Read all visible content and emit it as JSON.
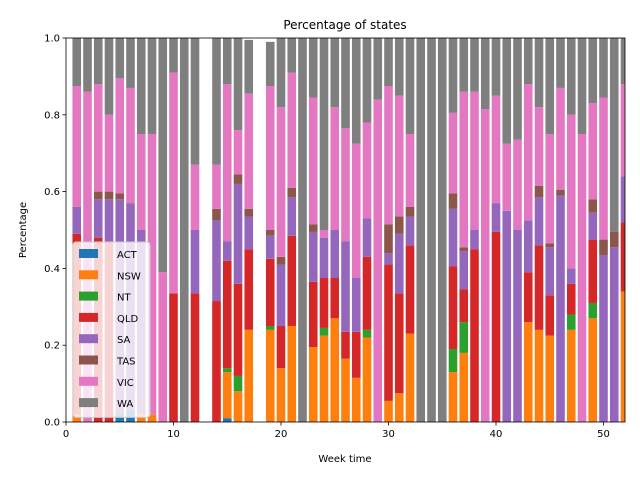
{
  "chart_data": {
    "type": "bar",
    "stacked": true,
    "title": "Percentage of states",
    "xlabel": "Week time",
    "ylabel": "Percentage",
    "xlim": [
      0,
      52
    ],
    "ylim": [
      0,
      1
    ],
    "xticks": [
      "0",
      "10",
      "20",
      "30",
      "40",
      "50"
    ],
    "yticks": [
      "0.0",
      "0.2",
      "0.4",
      "0.6",
      "0.8",
      "1.0"
    ],
    "legend_position": "lower-left",
    "grid": false,
    "x": [
      1,
      2,
      3,
      4,
      5,
      6,
      7,
      8,
      9,
      10,
      11,
      12,
      13,
      14,
      15,
      16,
      17,
      18,
      19,
      20,
      21,
      22,
      23,
      24,
      25,
      26,
      27,
      28,
      29,
      30,
      31,
      32,
      33,
      34,
      35,
      36,
      37,
      38,
      39,
      40,
      41,
      42,
      43,
      44,
      45,
      46,
      47,
      48,
      49,
      50,
      51,
      52
    ],
    "series": [
      {
        "name": "ACT",
        "color": "#1f77b4",
        "values": [
          0,
          0,
          0,
          0,
          0.02,
          0.03,
          0,
          0,
          0,
          0,
          0,
          0,
          0,
          0,
          0.01,
          0,
          0,
          0,
          0,
          0,
          0,
          0,
          0,
          0,
          0,
          0,
          0,
          0,
          0,
          0,
          0,
          0,
          0,
          0,
          0,
          0,
          0,
          0,
          0,
          0,
          0,
          0,
          0,
          0,
          0,
          0,
          0,
          0,
          0,
          0,
          0,
          0
        ]
      },
      {
        "name": "NSW",
        "color": "#ff7f0e",
        "values": [
          0.02,
          0,
          0,
          0,
          0,
          0,
          0.02,
          0.02,
          0,
          0,
          0,
          0,
          0,
          0,
          0.12,
          0.08,
          0.24,
          0,
          0.24,
          0.14,
          0.25,
          0,
          0.195,
          0.225,
          0.27,
          0.165,
          0.115,
          0.22,
          0,
          0.055,
          0.075,
          0.23,
          0,
          0,
          0,
          0.13,
          0.18,
          0,
          0,
          0,
          0,
          0,
          0.26,
          0.24,
          0.225,
          0,
          0.24,
          0,
          0.27,
          0,
          0,
          0.34
        ]
      },
      {
        "name": "NT",
        "color": "#2ca02c",
        "values": [
          0,
          0,
          0,
          0,
          0,
          0,
          0,
          0,
          0,
          0,
          0,
          0,
          0,
          0,
          0.01,
          0.04,
          0,
          0,
          0.01,
          0,
          0,
          0,
          0,
          0.02,
          0,
          0,
          0,
          0.02,
          0,
          0,
          0,
          0,
          0,
          0,
          0,
          0.06,
          0.08,
          0,
          0,
          0,
          0,
          0,
          0,
          0,
          0,
          0,
          0.04,
          0,
          0.04,
          0,
          0,
          0
        ]
      },
      {
        "name": "QLD",
        "color": "#d62728",
        "values": [
          0.47,
          0,
          0.48,
          0.47,
          0,
          0,
          0,
          0,
          0,
          0.335,
          0,
          0.335,
          0,
          0.315,
          0.28,
          0.24,
          0.21,
          0,
          0.175,
          0.11,
          0.235,
          0,
          0.17,
          0.13,
          0.105,
          0.07,
          0.12,
          0.19,
          0,
          0.355,
          0.26,
          0.23,
          0,
          0,
          0,
          0.215,
          0.085,
          0.45,
          0,
          0.495,
          0,
          0,
          0.13,
          0.22,
          0.105,
          0,
          0.08,
          0,
          0.165,
          0,
          0,
          0.18
        ]
      },
      {
        "name": "SA",
        "color": "#9467bd",
        "values": [
          0.07,
          0,
          0.1,
          0.11,
          0.56,
          0.54,
          0.48,
          0,
          0,
          0,
          0,
          0.165,
          0,
          0.21,
          0.05,
          0.26,
          0.085,
          0,
          0.06,
          0.16,
          0.1,
          0,
          0.13,
          0.105,
          0.125,
          0.235,
          0.14,
          0.1,
          0,
          0.03,
          0.155,
          0.075,
          0,
          0,
          0,
          0.15,
          0.1,
          0.05,
          0,
          0.075,
          0.55,
          0.5,
          0.135,
          0.125,
          0.125,
          0.59,
          0.04,
          0,
          0.07,
          0.435,
          0.455,
          0.12
        ]
      },
      {
        "name": "TAS",
        "color": "#8c564b",
        "values": [
          0,
          0,
          0.02,
          0.02,
          0.015,
          0,
          0,
          0,
          0,
          0,
          0,
          0,
          0,
          0.03,
          0,
          0.025,
          0.02,
          0,
          0.015,
          0.02,
          0.025,
          0,
          0.02,
          0,
          0,
          0,
          0,
          0,
          0,
          0.075,
          0.045,
          0.025,
          0,
          0,
          0,
          0.04,
          0.01,
          0,
          0,
          0,
          0,
          0,
          0,
          0.03,
          0.01,
          0.015,
          0,
          0,
          0.035,
          0.04,
          0.04,
          0
        ]
      },
      {
        "name": "VIC",
        "color": "#e377c2",
        "values": [
          0.315,
          0.86,
          0.28,
          0.2,
          0.3,
          0.3,
          0.25,
          0.73,
          0.39,
          0.575,
          0,
          0.17,
          0,
          0.115,
          0.41,
          0.115,
          0.3,
          0,
          0.375,
          0.39,
          0.3,
          0,
          0.33,
          0.02,
          0.32,
          0.295,
          0.35,
          0.25,
          0.84,
          0.36,
          0.315,
          0.19,
          0,
          0,
          0,
          0.21,
          0.405,
          0.36,
          0.815,
          0.28,
          0.175,
          0.235,
          0.355,
          0.205,
          0.285,
          0.265,
          0.4,
          0.75,
          0.25,
          0.37,
          0,
          0.24
        ]
      },
      {
        "name": "WA",
        "color": "#7f7f7f",
        "values": [
          0.125,
          0.14,
          0.12,
          0.2,
          0.105,
          0.13,
          0.25,
          0.25,
          0.61,
          0.09,
          1,
          0.33,
          0,
          0.33,
          0.12,
          0.28,
          0.14,
          0,
          0.115,
          0.18,
          0.115,
          1,
          0.155,
          0.5,
          0.18,
          0.235,
          0.275,
          0.22,
          0.16,
          0.125,
          0.15,
          0.25,
          1,
          1,
          1,
          0.195,
          0.14,
          0.14,
          0.185,
          0.15,
          0.275,
          0.265,
          0.12,
          0.18,
          0.25,
          0.13,
          0.24,
          0.25,
          0.17,
          0.155,
          0.505,
          0.12
        ]
      }
    ]
  }
}
